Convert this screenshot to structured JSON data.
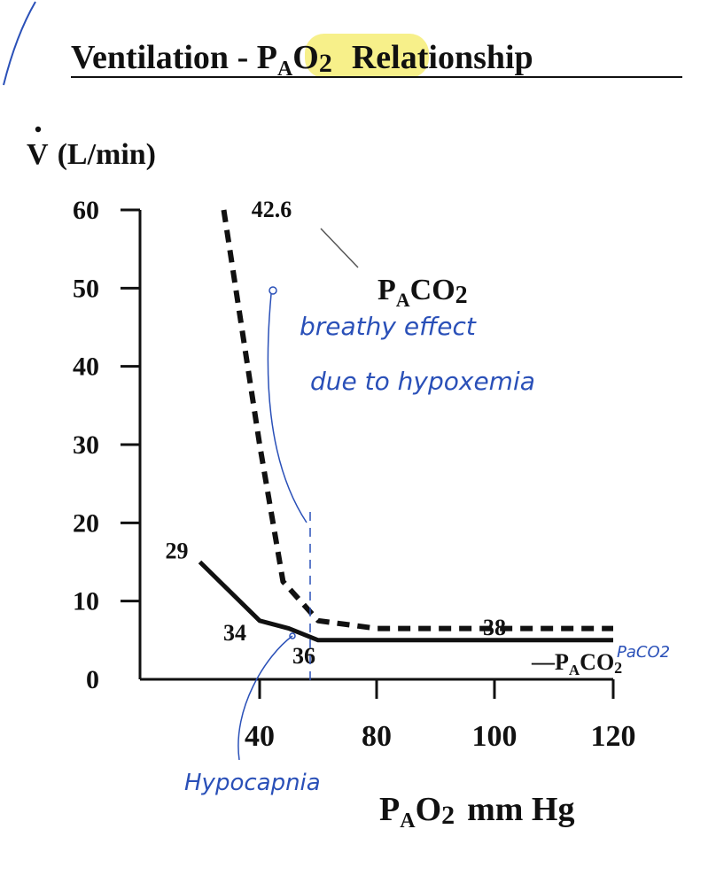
{
  "title": {
    "main": "Ventilation - ",
    "sym_p": "P",
    "sym_sub": "A",
    "sym_o": "O",
    "sym_2": "2",
    "rest": "Relationship",
    "highlight_color": "#f7f08a"
  },
  "y_axis_label": {
    "v": "V",
    "unit": "(L/min)"
  },
  "x_axis_label": {
    "p": "P",
    "sub": "A",
    "o": "O",
    "two": "2",
    "unit": "mm Hg"
  },
  "chart_data": {
    "type": "line",
    "xlabel": "PAO2 mm Hg",
    "ylabel": "V (L/min)",
    "x_ticks": [
      {
        "value": 40,
        "label": "40"
      },
      {
        "value": 80,
        "label": "80"
      },
      {
        "value": 100,
        "label": "100"
      },
      {
        "value": 120,
        "label": "120"
      }
    ],
    "y_ticks": [
      {
        "value": 0,
        "label": "0"
      },
      {
        "value": 10,
        "label": "10"
      },
      {
        "value": 20,
        "label": "20"
      },
      {
        "value": 30,
        "label": "30"
      },
      {
        "value": 40,
        "label": "40"
      },
      {
        "value": 50,
        "label": "50"
      },
      {
        "value": 60,
        "label": "60"
      }
    ],
    "series": [
      {
        "style": "solid",
        "points": [
          [
            30,
            15
          ],
          [
            40,
            7.5
          ],
          [
            50,
            6.5
          ],
          [
            60,
            5
          ],
          [
            80,
            5
          ],
          [
            120,
            5
          ]
        ],
        "point_labels": [
          {
            "text": "29",
            "x": 30,
            "y": 15
          },
          {
            "text": "34",
            "x": 40,
            "y": 7.5
          },
          {
            "text": "36",
            "x": 60,
            "y": 5
          },
          {
            "text": "38",
            "x": 100,
            "y": 5
          }
        ]
      },
      {
        "style": "dashed",
        "points": [
          [
            34,
            60
          ],
          [
            40,
            30
          ],
          [
            48,
            12.5
          ],
          [
            60,
            7.5
          ],
          [
            80,
            6.5
          ],
          [
            120,
            6.5
          ]
        ],
        "point_labels": [
          {
            "text": "42.6",
            "x": 34,
            "y": 60
          }
        ]
      }
    ]
  },
  "annotations": {
    "paco2_label": {
      "p": "P",
      "sub": "A",
      "co": "CO",
      "two": "2"
    },
    "legend_solid": {
      "dash": "—",
      "p": "P",
      "sub": "A",
      "co": "CO",
      "two": "2"
    },
    "handwritten": {
      "breathing": "breathy effect",
      "due_to": "due to hypoxemia",
      "hypocapnia": "Hypocapnia",
      "paco2": "PaCO2"
    }
  }
}
